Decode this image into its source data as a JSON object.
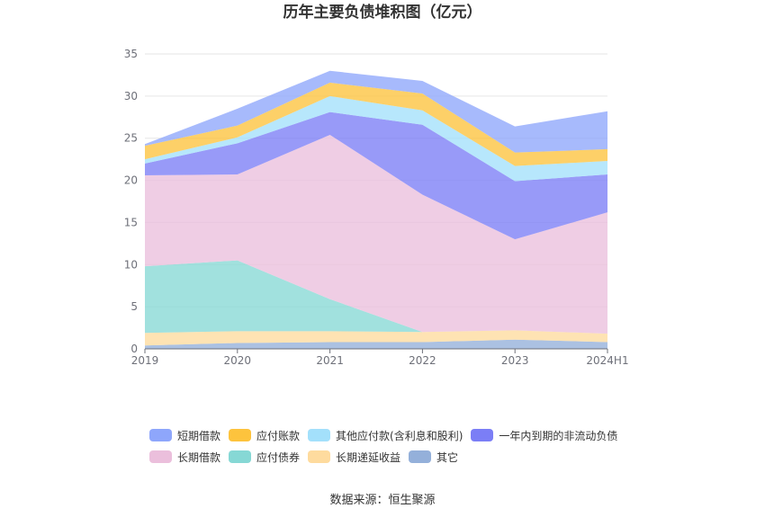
{
  "title": "历年主要负债堆积图（亿元）",
  "source": "数据来源：恒生聚源",
  "colors": {
    "短期借款": "#8ea6fb",
    "应付账款": "#fdc33d",
    "其他应付款(含利息和股利)": "#a3e0fb",
    "一年内到期的非流动负债": "#7b7ef6",
    "长期借款": "#ebbfdc",
    "应付债券": "#86d8d5",
    "长期递延收益": "#fedb9e",
    "其它": "#94b0da"
  },
  "chart_data": {
    "type": "area",
    "stacked": true,
    "x": [
      "2019",
      "2020",
      "2021",
      "2022",
      "2023",
      "2024H1"
    ],
    "ylim": [
      0,
      35
    ],
    "yticks": [
      0,
      5,
      10,
      15,
      20,
      25,
      30,
      35
    ],
    "grid": true,
    "legend_position": "bottom",
    "series": [
      {
        "name": "其它",
        "values": [
          0.4,
          0.7,
          0.8,
          0.8,
          1.1,
          0.8
        ]
      },
      {
        "name": "长期递延收益",
        "values": [
          1.5,
          1.4,
          1.3,
          1.2,
          1.1,
          1.0
        ]
      },
      {
        "name": "应付债券",
        "values": [
          7.9,
          8.4,
          3.8,
          0.0,
          0.0,
          0.0
        ]
      },
      {
        "name": "长期借款",
        "values": [
          10.8,
          10.2,
          19.5,
          16.3,
          10.8,
          14.4
        ]
      },
      {
        "name": "一年内到期的非流动负债",
        "values": [
          1.4,
          3.7,
          2.7,
          8.3,
          6.9,
          4.5
        ]
      },
      {
        "name": "其他应付款(含利息和股利)",
        "values": [
          0.5,
          0.7,
          1.9,
          1.7,
          1.8,
          1.6
        ]
      },
      {
        "name": "应付账款",
        "values": [
          1.6,
          1.4,
          1.6,
          2.0,
          1.6,
          1.4
        ]
      },
      {
        "name": "短期借款",
        "values": [
          0.2,
          2.0,
          1.4,
          1.5,
          3.1,
          4.5
        ]
      }
    ]
  },
  "legend_rows": [
    [
      "短期借款",
      "应付账款",
      "其他应付款(含利息和股利)",
      "一年内到期的非流动负债"
    ],
    [
      "长期借款",
      "应付债券",
      "长期递延收益",
      "其它"
    ]
  ]
}
